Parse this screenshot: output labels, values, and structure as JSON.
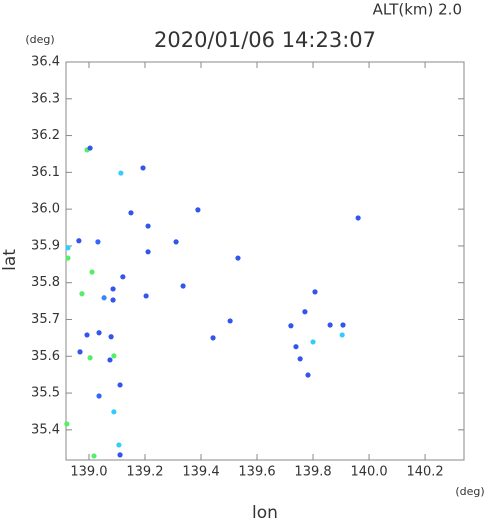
{
  "chart_data": {
    "type": "scatter",
    "title": "2020/01/06 14:23:07",
    "subtitle": "ALT(km) 2.0",
    "x_label": "lon",
    "y_label": "lat",
    "x_unit": "(deg)",
    "y_unit": "(deg)",
    "xlim": [
      138.918,
      140.339
    ],
    "ylim": [
      35.318,
      36.4
    ],
    "xticks": [
      {
        "value": 139.0,
        "label": "139.0"
      },
      139.2,
      139.4,
      139.6,
      139.8,
      {
        "value": 140.0,
        "label": "140.0"
      },
      140.2
    ],
    "yticks": [
      36.4,
      36.3,
      36.2,
      36.1,
      {
        "value": 36.0,
        "label": "36.0"
      },
      35.9,
      35.8,
      35.7,
      35.6,
      35.5,
      35.4
    ],
    "x": [
      138.993,
      139.004,
      139.114,
      139.193,
      139.15,
      138.964,
      139.032,
      138.925,
      138.925,
      139.211,
      139.311,
      139.011,
      139.086,
      139.054,
      139.086,
      139.121,
      138.975,
      139.204,
      138.993,
      139.036,
      139.079,
      138.968,
      139.004,
      139.089,
      139.075,
      139.111,
      139.036,
      139.089,
      138.921,
      139.107,
      139.018,
      139.111,
      139.336,
      139.532,
      139.504,
      139.443,
      139.771,
      139.721,
      139.739,
      139.8,
      139.807,
      139.861,
      139.904,
      139.907,
      139.754,
      139.782,
      139.961,
      139.389,
      139.211
    ],
    "y": [
      36.161,
      36.166,
      36.098,
      36.112,
      35.99,
      35.914,
      35.911,
      35.895,
      35.867,
      35.884,
      35.911,
      35.829,
      35.783,
      35.759,
      35.753,
      35.816,
      35.77,
      35.764,
      35.658,
      35.664,
      35.653,
      35.612,
      35.596,
      35.601,
      35.59,
      35.522,
      35.492,
      35.449,
      35.416,
      35.359,
      35.329,
      35.332,
      35.791,
      35.867,
      35.696,
      35.65,
      35.721,
      35.683,
      35.626,
      35.639,
      35.775,
      35.685,
      35.658,
      35.685,
      35.593,
      35.549,
      35.976,
      35.998,
      35.954
    ],
    "colors": [
      "#55ee66",
      "#3355ee",
      "#33ccff",
      "#3355ee",
      "#3355ee",
      "#3355ee",
      "#3366ff",
      "#33ccff",
      "#55ee66",
      "#3355ee",
      "#3355ee",
      "#55ee66",
      "#3355ee",
      "#3388ff",
      "#3355ee",
      "#3355ee",
      "#55ee66",
      "#3355ee",
      "#3355ee",
      "#3355ee",
      "#3355ee",
      "#3355ee",
      "#55ee66",
      "#55ee66",
      "#3355ee",
      "#3355ee",
      "#3366ff",
      "#33ccff",
      "#55ee66",
      "#33ccff",
      "#55ee66",
      "#3355ee",
      "#3355ee",
      "#3355ee",
      "#3355ee",
      "#3355ee",
      "#3355ee",
      "#3355ee",
      "#3355ee",
      "#33ccff",
      "#3355ee",
      "#3355ee",
      "#33ccff",
      "#3355ee",
      "#3355ee",
      "#3355ee",
      "#3355ee",
      "#3355ee",
      "#3355ee"
    ]
  }
}
